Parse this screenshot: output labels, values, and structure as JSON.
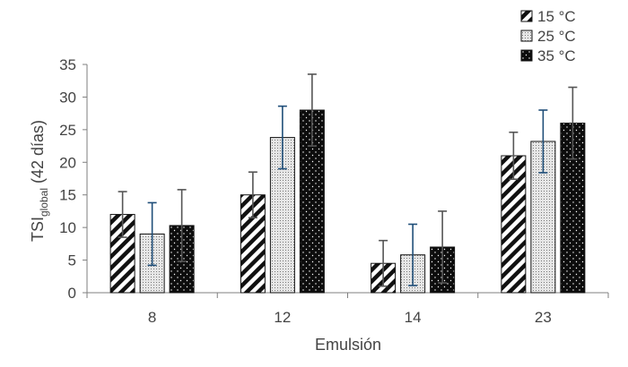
{
  "chart_data": {
    "type": "bar",
    "xlabel": "Emulsión",
    "ylabel_main": "TSI",
    "ylabel_sub": "global",
    "ylabel_rest": " (42 días)",
    "categories": [
      "8",
      "12",
      "14",
      "23"
    ],
    "ylim": [
      0,
      35
    ],
    "yticks": [
      0,
      5,
      10,
      15,
      20,
      25,
      30,
      35
    ],
    "grid": false,
    "legend_position": "top-right",
    "series": [
      {
        "name": "15 °C",
        "pattern": "diagonal-stripes",
        "values": [
          12.0,
          15.0,
          4.5,
          21.0
        ],
        "errors": [
          3.5,
          3.5,
          3.5,
          3.6
        ],
        "error_color": "#555555"
      },
      {
        "name": "25 °C",
        "pattern": "fine-dots",
        "values": [
          9.0,
          23.8,
          5.8,
          23.2
        ],
        "errors": [
          4.8,
          4.8,
          4.7,
          4.8
        ],
        "error_color": "#1f4e79"
      },
      {
        "name": "35 °C",
        "pattern": "black-dotted",
        "values": [
          10.3,
          28.0,
          7.0,
          26.0
        ],
        "errors": [
          5.5,
          5.5,
          5.5,
          5.5
        ],
        "error_color": "#555555"
      }
    ]
  }
}
